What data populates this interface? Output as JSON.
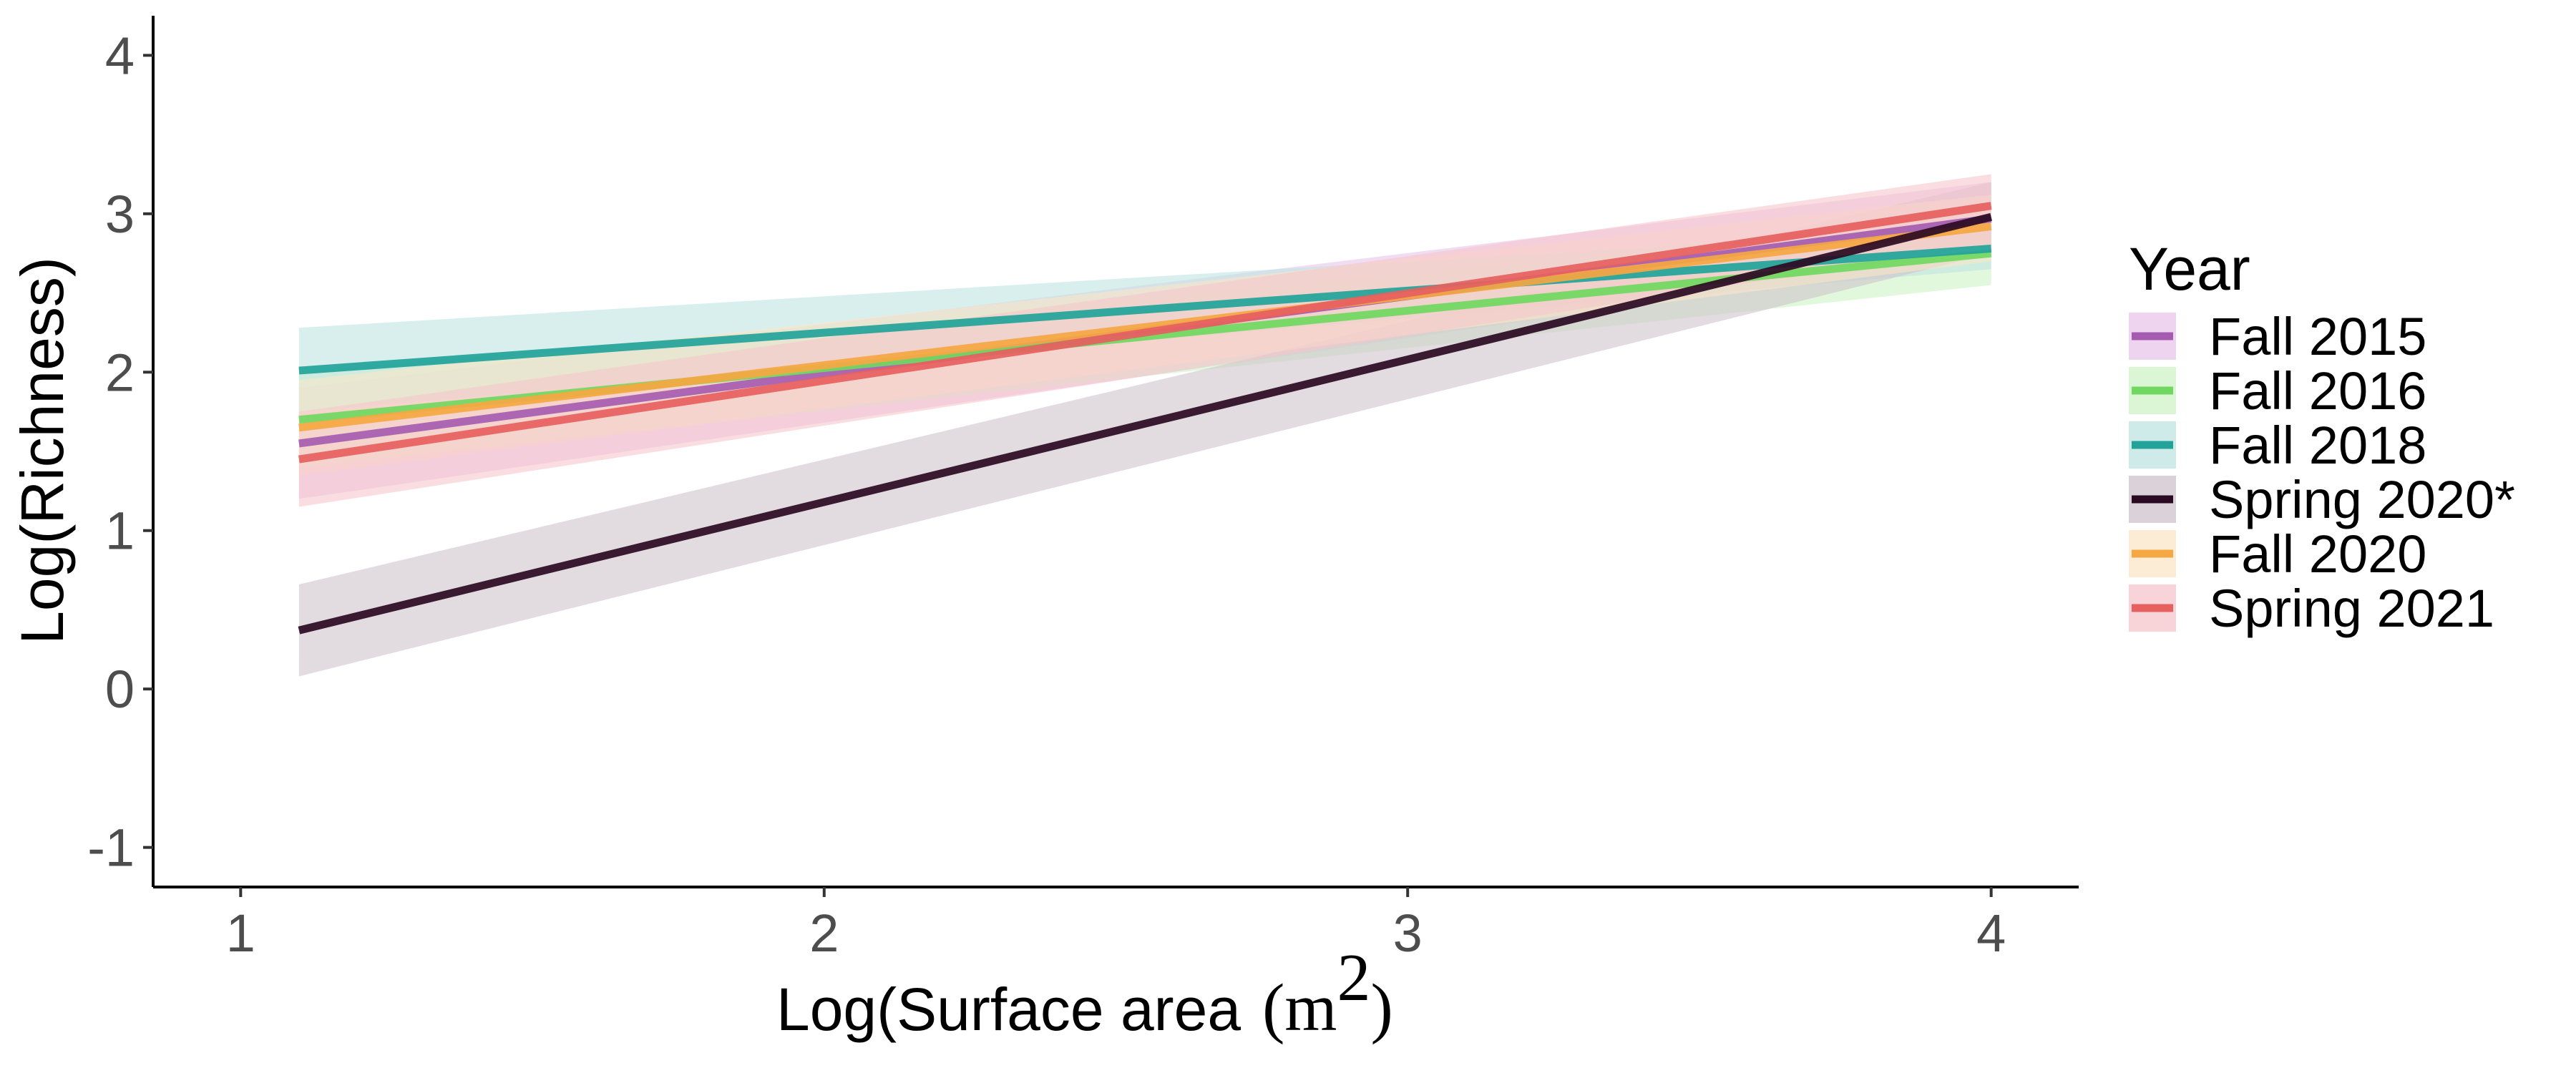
{
  "chart_data": {
    "type": "line",
    "xlabel": "Log(Surface area",
    "xlabel_unit_base": "m",
    "xlabel_unit_exp": "2",
    "ylabel": "Log(Richness)",
    "xlim": [
      0.85,
      4.15
    ],
    "ylim": [
      -1.25,
      4.25
    ],
    "x_ticks": [
      1,
      2,
      3,
      4
    ],
    "x_tick_labels": [
      "1",
      "2",
      "3",
      "4"
    ],
    "y_ticks": [
      -1,
      0,
      1,
      2,
      3,
      4
    ],
    "y_tick_labels": [
      "-1",
      "0",
      "1",
      "2",
      "3",
      "4"
    ],
    "grid": false,
    "legend_title": "Year",
    "legend_position": "right",
    "series": [
      {
        "name": "Fall 2015",
        "color": "#A55CB0",
        "fill": "#E8C6EA",
        "x": [
          1.1,
          4.0
        ],
        "y": [
          1.55,
          2.97
        ],
        "lower": [
          1.2,
          2.75
        ],
        "upper": [
          1.9,
          3.2
        ]
      },
      {
        "name": "Fall 2016",
        "color": "#70D860",
        "fill": "#CDF3C6",
        "x": [
          1.1,
          4.0
        ],
        "y": [
          1.7,
          2.75
        ],
        "lower": [
          1.4,
          2.55
        ],
        "upper": [
          2.0,
          2.95
        ]
      },
      {
        "name": "Fall 2018",
        "color": "#22A39A",
        "fill": "#BFE4E1",
        "x": [
          1.1,
          4.0
        ],
        "y": [
          2.01,
          2.78
        ],
        "lower": [
          1.75,
          2.65
        ],
        "upper": [
          2.28,
          2.92
        ]
      },
      {
        "name": "Spring 2020*",
        "color": "#2A0A22",
        "fill": "#CFC3CC",
        "x": [
          1.1,
          4.0
        ],
        "y": [
          0.37,
          2.98
        ],
        "lower": [
          0.08,
          2.75
        ],
        "upper": [
          0.66,
          3.2
        ]
      },
      {
        "name": "Fall 2020",
        "color": "#F5A742",
        "fill": "#FBE6C8",
        "x": [
          1.1,
          4.0
        ],
        "y": [
          1.65,
          2.92
        ],
        "lower": [
          1.35,
          2.7
        ],
        "upper": [
          1.95,
          3.12
        ]
      },
      {
        "name": "Spring 2021",
        "color": "#E66060",
        "fill": "#F6C6CB",
        "x": [
          1.1,
          4.0
        ],
        "y": [
          1.45,
          3.05
        ],
        "lower": [
          1.15,
          2.8
        ],
        "upper": [
          1.75,
          3.25
        ]
      }
    ]
  }
}
